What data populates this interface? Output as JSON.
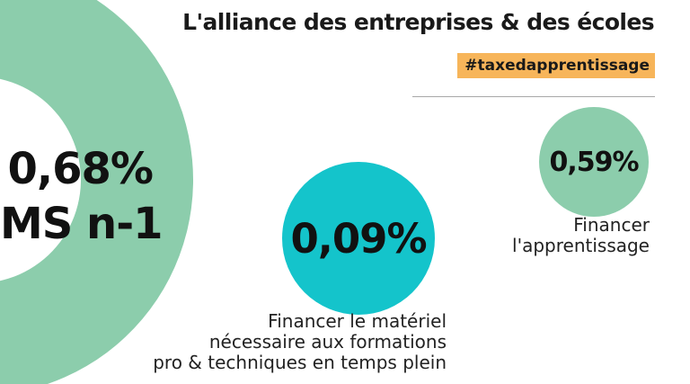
{
  "header": {
    "title": "L'alliance des entreprises & des écoles",
    "hashtag": "#taxedapprentissage"
  },
  "donut": {
    "percent": "0,68%",
    "label": "MS n-1",
    "segments": [
      {
        "share": 0.59,
        "color": "#8ccdac"
      },
      {
        "share": 0.09,
        "color": "#14c4cb"
      }
    ]
  },
  "items": [
    {
      "value": "0,09%",
      "color": "#14c4cb",
      "caption": [
        "Financer le matériel",
        "nécessaire aux formations",
        "pro & techniques en temps plein"
      ]
    },
    {
      "value": "0,59%",
      "color": "#8ccdac",
      "caption": [
        "Financer",
        "l'apprentissage"
      ]
    }
  ],
  "colors": {
    "accent_orange": "#f7b55a",
    "teal": "#14c4cb",
    "green": "#8ccdac"
  }
}
